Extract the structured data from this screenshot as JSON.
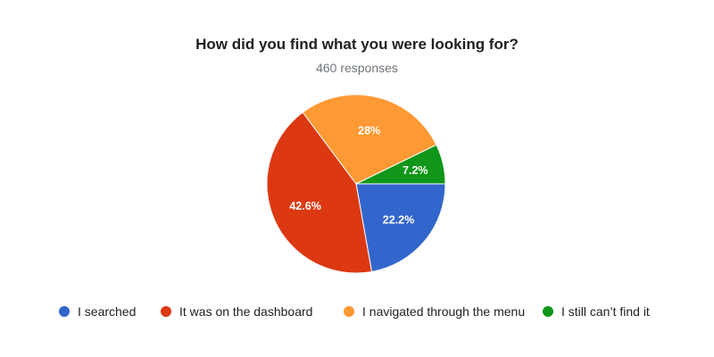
{
  "chart_data": {
    "type": "pie",
    "title": "How did you find what you were looking for?",
    "subtitle": "460 responses",
    "slices": [
      {
        "label": "I searched",
        "value": 22.2,
        "display": "22.2%",
        "color": "#3366cc"
      },
      {
        "label": "It was on the dashboard",
        "value": 42.6,
        "display": "42.6%",
        "color": "#dc3912"
      },
      {
        "label": "I navigated through the menu",
        "value": 28.0,
        "display": "28%",
        "color": "#ff9933"
      },
      {
        "label": "I still can’t find it",
        "value": 7.2,
        "display": "7.2%",
        "color": "#109618"
      }
    ],
    "legend_position": "bottom"
  }
}
